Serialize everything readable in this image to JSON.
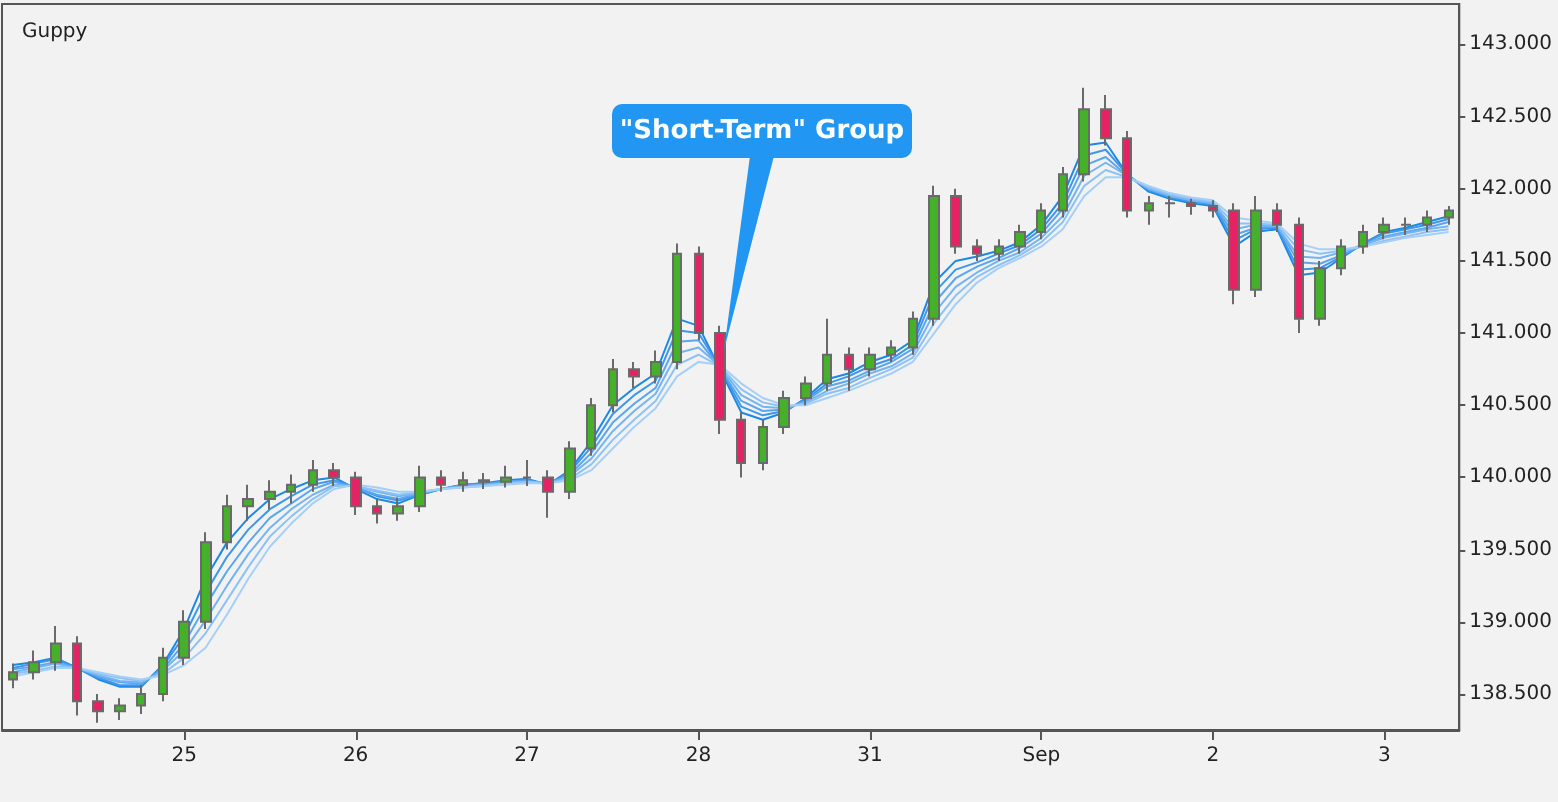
{
  "chart_data": {
    "type": "candlestick",
    "title": "Guppy",
    "categories": [
      null,
      null,
      null,
      null,
      null,
      null,
      null,
      null,
      "25",
      null,
      null,
      null,
      null,
      null,
      null,
      null,
      "26",
      null,
      null,
      null,
      null,
      null,
      null,
      null,
      "27",
      null,
      null,
      null,
      null,
      null,
      null,
      null,
      "28",
      null,
      null,
      null,
      null,
      null,
      null,
      null,
      "31",
      null,
      null,
      null,
      null,
      null,
      null,
      null,
      "Sep",
      null,
      null,
      null,
      null,
      null,
      null,
      null,
      "2",
      null,
      null,
      null,
      null,
      null,
      null,
      null,
      "3",
      null,
      null,
      null
    ],
    "ohlc": [
      [
        138.6,
        138.71,
        138.54,
        138.65
      ],
      [
        138.65,
        138.8,
        138.6,
        138.72
      ],
      [
        138.72,
        138.97,
        138.66,
        138.85
      ],
      [
        138.85,
        138.9,
        138.35,
        138.45
      ],
      [
        138.45,
        138.5,
        138.3,
        138.38
      ],
      [
        138.38,
        138.47,
        138.32,
        138.42
      ],
      [
        138.42,
        138.56,
        138.36,
        138.5
      ],
      [
        138.5,
        138.82,
        138.45,
        138.75
      ],
      [
        138.75,
        139.08,
        138.7,
        139.0
      ],
      [
        139.0,
        139.62,
        138.95,
        139.55
      ],
      [
        139.55,
        139.88,
        139.5,
        139.8
      ],
      [
        139.8,
        139.95,
        139.7,
        139.85
      ],
      [
        139.85,
        139.98,
        139.78,
        139.9
      ],
      [
        139.9,
        140.02,
        139.82,
        139.95
      ],
      [
        139.95,
        140.12,
        139.9,
        140.05
      ],
      [
        140.05,
        140.1,
        139.94,
        140.0
      ],
      [
        140.0,
        140.04,
        139.74,
        139.8
      ],
      [
        139.8,
        139.85,
        139.68,
        139.75
      ],
      [
        139.75,
        139.86,
        139.7,
        139.8
      ],
      [
        139.8,
        140.08,
        139.76,
        140.0
      ],
      [
        140.0,
        140.05,
        139.9,
        139.95
      ],
      [
        139.95,
        140.04,
        139.9,
        139.98
      ],
      [
        139.98,
        140.03,
        139.92,
        139.97
      ],
      [
        139.97,
        140.08,
        139.93,
        140.0
      ],
      [
        140.0,
        140.12,
        139.94,
        140.0
      ],
      [
        140.0,
        140.05,
        139.72,
        139.9
      ],
      [
        139.9,
        140.25,
        139.85,
        140.2
      ],
      [
        140.2,
        140.55,
        140.15,
        140.5
      ],
      [
        140.5,
        140.82,
        140.45,
        140.75
      ],
      [
        140.75,
        140.8,
        140.62,
        140.7
      ],
      [
        140.7,
        140.88,
        140.65,
        140.8
      ],
      [
        140.8,
        141.62,
        140.75,
        141.55
      ],
      [
        141.55,
        141.6,
        140.95,
        141.0
      ],
      [
        141.0,
        141.05,
        140.3,
        140.4
      ],
      [
        140.4,
        140.45,
        140.0,
        140.1
      ],
      [
        140.1,
        140.4,
        140.05,
        140.35
      ],
      [
        140.35,
        140.6,
        140.3,
        140.55
      ],
      [
        140.55,
        140.7,
        140.5,
        140.65
      ],
      [
        140.65,
        141.1,
        140.6,
        140.85
      ],
      [
        140.85,
        140.9,
        140.6,
        140.75
      ],
      [
        140.75,
        140.9,
        140.7,
        140.85
      ],
      [
        140.85,
        140.95,
        140.8,
        140.9
      ],
      [
        140.9,
        141.15,
        140.85,
        141.1
      ],
      [
        141.1,
        142.02,
        141.05,
        141.95
      ],
      [
        141.95,
        142.0,
        141.55,
        141.6
      ],
      [
        141.6,
        141.65,
        141.5,
        141.55
      ],
      [
        141.55,
        141.65,
        141.5,
        141.6
      ],
      [
        141.6,
        141.75,
        141.55,
        141.7
      ],
      [
        141.7,
        141.9,
        141.65,
        141.85
      ],
      [
        141.85,
        142.15,
        141.8,
        142.1
      ],
      [
        142.1,
        142.7,
        142.05,
        142.55
      ],
      [
        142.55,
        142.65,
        142.3,
        142.35
      ],
      [
        142.35,
        142.4,
        141.8,
        141.85
      ],
      [
        141.85,
        141.95,
        141.75,
        141.9
      ],
      [
        141.9,
        141.95,
        141.8,
        141.9
      ],
      [
        141.9,
        141.93,
        141.82,
        141.88
      ],
      [
        141.88,
        141.92,
        141.8,
        141.85
      ],
      [
        141.85,
        141.9,
        141.2,
        141.3
      ],
      [
        141.3,
        141.95,
        141.25,
        141.85
      ],
      [
        141.85,
        141.9,
        141.7,
        141.75
      ],
      [
        141.75,
        141.8,
        141.0,
        141.1
      ],
      [
        141.1,
        141.5,
        141.05,
        141.45
      ],
      [
        141.45,
        141.65,
        141.4,
        141.6
      ],
      [
        141.6,
        141.75,
        141.55,
        141.7
      ],
      [
        141.7,
        141.8,
        141.65,
        141.75
      ],
      [
        141.75,
        141.8,
        141.68,
        141.75
      ],
      [
        141.75,
        141.85,
        141.7,
        141.8
      ],
      [
        141.8,
        141.88,
        141.75,
        141.85
      ]
    ],
    "series": [
      {
        "type": "line",
        "color": "#1e88e5",
        "values": [
          138.7,
          138.72,
          138.75,
          138.68,
          138.6,
          138.55,
          138.55,
          138.7,
          138.95,
          139.3,
          139.55,
          139.72,
          139.85,
          139.92,
          139.98,
          140.0,
          139.92,
          139.85,
          139.82,
          139.88,
          139.92,
          139.95,
          139.96,
          139.98,
          139.99,
          139.95,
          140.05,
          140.25,
          140.5,
          140.62,
          140.72,
          141.1,
          141.05,
          140.75,
          140.45,
          140.4,
          140.45,
          140.55,
          140.68,
          140.72,
          140.8,
          140.85,
          140.95,
          141.35,
          141.5,
          141.53,
          141.57,
          141.63,
          141.75,
          141.95,
          142.3,
          142.32,
          142.1,
          141.98,
          141.93,
          141.9,
          141.88,
          141.6,
          141.7,
          141.72,
          141.4,
          141.42,
          141.52,
          141.62,
          141.7,
          141.73,
          141.77,
          141.81
        ]
      },
      {
        "type": "line",
        "color": "#3d97eb",
        "values": [
          138.68,
          138.71,
          138.74,
          138.68,
          138.61,
          138.56,
          138.56,
          138.69,
          138.9,
          139.2,
          139.45,
          139.64,
          139.78,
          139.87,
          139.95,
          139.98,
          139.93,
          139.87,
          139.84,
          139.88,
          139.92,
          139.95,
          139.96,
          139.97,
          139.98,
          139.95,
          140.04,
          140.21,
          140.44,
          140.57,
          140.67,
          141.02,
          141.0,
          140.76,
          140.49,
          140.43,
          140.46,
          140.54,
          140.65,
          140.7,
          140.77,
          140.82,
          140.92,
          141.28,
          141.44,
          141.49,
          141.55,
          141.61,
          141.72,
          141.9,
          142.23,
          142.27,
          142.1,
          141.99,
          141.94,
          141.91,
          141.89,
          141.64,
          141.72,
          141.73,
          141.44,
          141.45,
          141.53,
          141.62,
          141.69,
          141.72,
          141.75,
          141.79
        ]
      },
      {
        "type": "line",
        "color": "#5aa6f0",
        "values": [
          138.67,
          138.69,
          138.72,
          138.68,
          138.62,
          138.58,
          138.57,
          138.67,
          138.85,
          139.11,
          139.35,
          139.55,
          139.72,
          139.82,
          139.92,
          139.97,
          139.93,
          139.88,
          139.85,
          139.89,
          139.92,
          139.94,
          139.95,
          139.97,
          139.98,
          139.95,
          140.02,
          140.17,
          140.38,
          140.51,
          140.62,
          140.94,
          140.95,
          140.76,
          140.53,
          140.46,
          140.47,
          140.53,
          140.63,
          140.67,
          140.74,
          140.8,
          140.89,
          141.21,
          141.38,
          141.46,
          141.52,
          141.59,
          141.69,
          141.86,
          142.16,
          142.22,
          142.09,
          142.0,
          141.95,
          141.92,
          141.9,
          141.68,
          141.73,
          141.74,
          141.49,
          141.48,
          141.54,
          141.61,
          141.67,
          141.7,
          141.73,
          141.77
        ]
      },
      {
        "type": "line",
        "color": "#74b4f3",
        "values": [
          138.65,
          138.68,
          138.71,
          138.68,
          138.63,
          138.59,
          138.58,
          138.66,
          138.8,
          139.01,
          139.25,
          139.47,
          139.65,
          139.78,
          139.88,
          139.95,
          139.94,
          139.9,
          139.87,
          139.89,
          139.92,
          139.94,
          139.95,
          139.96,
          139.97,
          139.96,
          140.01,
          140.13,
          140.32,
          140.46,
          140.58,
          140.86,
          140.9,
          140.77,
          140.57,
          140.49,
          140.48,
          140.52,
          140.6,
          140.65,
          140.72,
          140.77,
          140.86,
          141.14,
          141.32,
          141.42,
          141.5,
          141.56,
          141.66,
          141.81,
          142.09,
          142.18,
          142.09,
          142.0,
          141.95,
          141.92,
          141.9,
          141.72,
          141.75,
          141.74,
          141.53,
          141.52,
          141.56,
          141.61,
          141.66,
          141.69,
          141.72,
          141.74
        ]
      },
      {
        "type": "line",
        "color": "#8cc2f6",
        "values": [
          138.64,
          138.66,
          138.69,
          138.68,
          138.64,
          138.61,
          138.59,
          138.64,
          138.75,
          138.92,
          139.15,
          139.38,
          139.59,
          139.73,
          139.85,
          139.94,
          139.94,
          139.91,
          139.88,
          139.9,
          139.92,
          139.93,
          139.94,
          139.96,
          139.97,
          139.96,
          139.99,
          140.09,
          140.26,
          140.4,
          140.53,
          140.78,
          140.85,
          140.77,
          140.61,
          140.52,
          140.49,
          140.51,
          140.58,
          140.62,
          140.69,
          140.75,
          140.83,
          141.07,
          141.26,
          141.39,
          141.47,
          141.54,
          141.63,
          141.77,
          142.02,
          142.13,
          142.08,
          142.01,
          141.96,
          141.93,
          141.91,
          141.76,
          141.76,
          141.75,
          141.58,
          141.55,
          141.57,
          141.6,
          141.64,
          141.67,
          141.7,
          141.72
        ]
      },
      {
        "type": "line",
        "color": "#a5cff8",
        "values": [
          138.62,
          138.65,
          138.68,
          138.68,
          138.65,
          138.62,
          138.6,
          138.63,
          138.7,
          138.82,
          139.05,
          139.3,
          139.52,
          139.68,
          139.82,
          139.92,
          139.95,
          139.93,
          139.9,
          139.9,
          139.92,
          139.93,
          139.94,
          139.95,
          139.96,
          139.96,
          139.98,
          140.05,
          140.2,
          140.35,
          140.48,
          140.7,
          140.8,
          140.78,
          140.65,
          140.55,
          140.5,
          140.5,
          140.55,
          140.6,
          140.66,
          140.72,
          140.8,
          141.0,
          141.2,
          141.35,
          141.45,
          141.52,
          141.6,
          141.72,
          141.95,
          142.08,
          142.08,
          142.02,
          141.97,
          141.94,
          141.92,
          141.8,
          141.78,
          141.76,
          141.62,
          141.58,
          141.58,
          141.6,
          141.63,
          141.66,
          141.68,
          141.7
        ]
      }
    ],
    "marker": "none",
    "ylim": [
      138.25,
      143.28
    ],
    "yticks": [
      {
        "value": 138.5,
        "label": "138.500"
      },
      {
        "value": 139,
        "label": "139.000"
      },
      {
        "value": 139.5,
        "label": "139.500"
      },
      {
        "value": 140,
        "label": "140.000"
      },
      {
        "value": 140.5,
        "label": "140.500"
      },
      {
        "value": 141,
        "label": "141.000"
      },
      {
        "value": 141.5,
        "label": "141.500"
      },
      {
        "value": 142,
        "label": "142.000"
      },
      {
        "value": 142.5,
        "label": "142.500"
      },
      {
        "value": 143,
        "label": "143.000"
      }
    ],
    "annotations": [
      "\"Short-Term\" Group"
    ]
  }
}
